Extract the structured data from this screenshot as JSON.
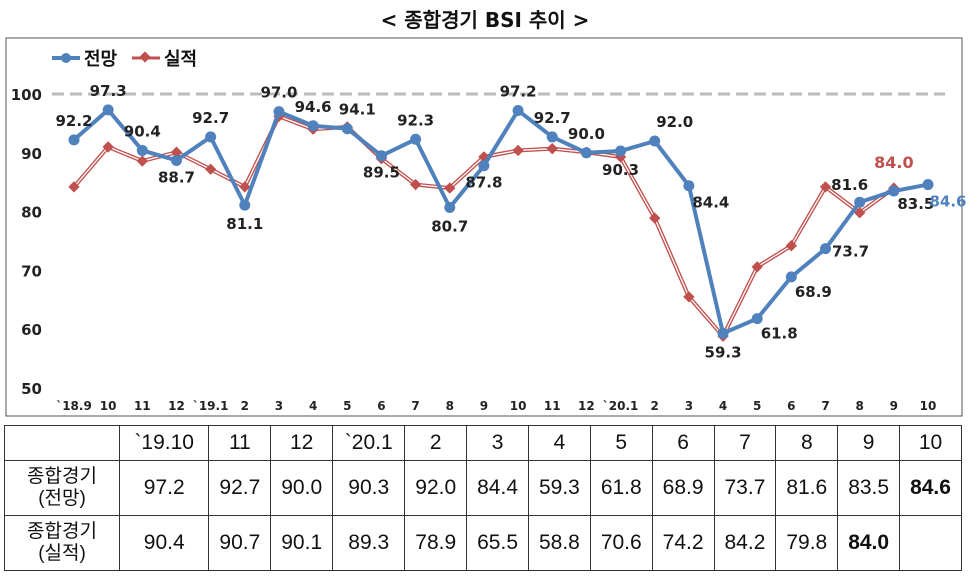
{
  "chart_data": {
    "type": "line",
    "title": "< 종합경기 BSI 추이 >",
    "categories": [
      "`18.9",
      "10",
      "11",
      "12",
      "`19.1",
      "2",
      "3",
      "4",
      "5",
      "6",
      "7",
      "8",
      "9",
      "10",
      "11",
      "12",
      "`20.1",
      "2",
      "3",
      "4",
      "5",
      "6",
      "7",
      "8",
      "9",
      "10"
    ],
    "series": [
      {
        "name": "전망",
        "color": "#4f81bd",
        "values": [
          92.2,
          97.3,
          90.4,
          88.7,
          92.7,
          81.1,
          97.0,
          94.6,
          94.1,
          89.5,
          92.3,
          80.7,
          87.8,
          97.2,
          92.7,
          90.0,
          90.3,
          92.0,
          84.4,
          59.3,
          61.8,
          68.9,
          73.7,
          81.6,
          83.5,
          84.6
        ],
        "labels": [
          "92.2",
          "97.3",
          "90.4",
          "88.7",
          "92.7",
          "81.1",
          "97.0",
          "94.6",
          "94.1",
          "89.5",
          "92.3",
          "80.7",
          "87.8",
          "97.2",
          "92.7",
          "90.0",
          "90.3",
          "92.0",
          "84.4",
          "59.3",
          "61.8",
          "68.9",
          "73.7",
          "81.6",
          "83.5",
          "84.6"
        ]
      },
      {
        "name": "실적",
        "color": "#c0504d",
        "values": [
          84.2,
          91.0,
          88.6,
          90.1,
          87.2,
          84.2,
          96.2,
          94.0,
          94.4,
          89.0,
          84.6,
          84.0,
          89.3,
          90.4,
          90.7,
          90.1,
          89.3,
          78.9,
          65.5,
          58.8,
          70.6,
          74.2,
          84.2,
          79.8,
          84.0,
          null
        ],
        "highlight_label": "84.0"
      }
    ],
    "ylim": [
      50,
      100
    ],
    "yticks": [
      "50",
      "60",
      "70",
      "80",
      "90",
      "100"
    ],
    "reference_line": 100,
    "legend": "top-left"
  },
  "table": {
    "headers": [
      "",
      "`19.10",
      "11",
      "12",
      "`20.1",
      "2",
      "3",
      "4",
      "5",
      "6",
      "7",
      "8",
      "9",
      "10"
    ],
    "rows": [
      {
        "label1": "종합경기",
        "label2": "(전망)",
        "cells": [
          "97.2",
          "92.7",
          "90.0",
          "90.3",
          "92.0",
          "84.4",
          "59.3",
          "61.8",
          "68.9",
          "73.7",
          "81.6",
          "83.5",
          "84.6"
        ]
      },
      {
        "label1": "종합경기",
        "label2": "(실적)",
        "cells": [
          "90.4",
          "90.7",
          "90.1",
          "89.3",
          "78.9",
          "65.5",
          "58.8",
          "70.6",
          "74.2",
          "84.2",
          "79.8",
          "84.0",
          ""
        ]
      }
    ]
  }
}
